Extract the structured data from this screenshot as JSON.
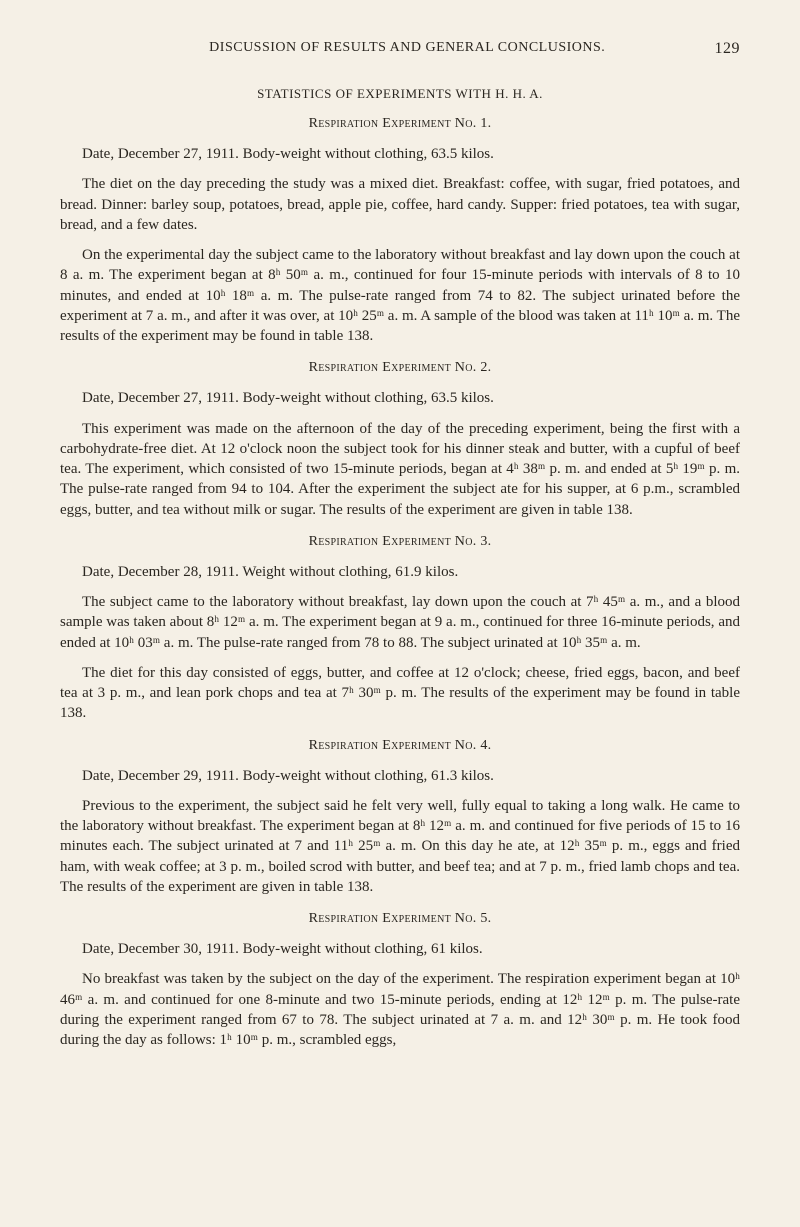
{
  "header": {
    "title": "DISCUSSION OF RESULTS AND GENERAL CONCLUSIONS.",
    "page_number": "129"
  },
  "section_title": "STATISTICS OF EXPERIMENTS WITH H. H. A.",
  "experiments": [
    {
      "title": "Respiration Experiment No. 1.",
      "paragraphs": [
        "Date, December 27, 1911. Body-weight without clothing, 63.5 kilos.",
        "The diet on the day preceding the study was a mixed diet. Breakfast: coffee, with sugar, fried potatoes, and bread. Dinner: barley soup, potatoes, bread, apple pie, coffee, hard candy. Supper: fried potatoes, tea with sugar, bread, and a few dates.",
        "On the experimental day the subject came to the laboratory without breakfast and lay down upon the couch at 8 a. m. The experiment began at 8ʰ 50ᵐ a. m., continued for four 15-minute periods with intervals of 8 to 10 minutes, and ended at 10ʰ 18ᵐ a. m. The pulse-rate ranged from 74 to 82. The subject urinated before the experiment at 7 a. m., and after it was over, at 10ʰ 25ᵐ a. m. A sample of the blood was taken at 11ʰ 10ᵐ a. m. The results of the experiment may be found in table 138."
      ]
    },
    {
      "title": "Respiration Experiment No. 2.",
      "paragraphs": [
        "Date, December 27, 1911. Body-weight without clothing, 63.5 kilos.",
        "This experiment was made on the afternoon of the day of the preceding experiment, being the first with a carbohydrate-free diet. At 12 o'clock noon the subject took for his dinner steak and butter, with a cupful of beef tea. The experiment, which consisted of two 15-minute periods, began at 4ʰ 38ᵐ p. m. and ended at 5ʰ 19ᵐ p. m. The pulse-rate ranged from 94 to 104. After the experiment the subject ate for his supper, at 6 p.m., scrambled eggs, butter, and tea without milk or sugar. The results of the experiment are given in table 138."
      ]
    },
    {
      "title": "Respiration Experiment No. 3.",
      "paragraphs": [
        "Date, December 28, 1911. Weight without clothing, 61.9 kilos.",
        "The subject came to the laboratory without breakfast, lay down upon the couch at 7ʰ 45ᵐ a. m., and a blood sample was taken about 8ʰ 12ᵐ a. m. The experiment began at 9 a. m., continued for three 16-minute periods, and ended at 10ʰ 03ᵐ a. m. The pulse-rate ranged from 78 to 88. The subject urinated at 10ʰ 35ᵐ a. m.",
        "The diet for this day consisted of eggs, butter, and coffee at 12 o'clock; cheese, fried eggs, bacon, and beef tea at 3 p. m., and lean pork chops and tea at 7ʰ 30ᵐ p. m. The results of the experiment may be found in table 138."
      ]
    },
    {
      "title": "Respiration Experiment No. 4.",
      "paragraphs": [
        "Date, December 29, 1911. Body-weight without clothing, 61.3 kilos.",
        "Previous to the experiment, the subject said he felt very well, fully equal to taking a long walk. He came to the laboratory without breakfast. The experiment began at 8ʰ 12ᵐ a. m. and continued for five periods of 15 to 16 minutes each. The subject urinated at 7 and 11ʰ 25ᵐ a. m. On this day he ate, at 12ʰ 35ᵐ p. m., eggs and fried ham, with weak coffee; at 3 p. m., boiled scrod with butter, and beef tea; and at 7 p. m., fried lamb chops and tea. The results of the experiment are given in table 138."
      ]
    },
    {
      "title": "Respiration Experiment No. 5.",
      "paragraphs": [
        "Date, December 30, 1911. Body-weight without clothing, 61 kilos.",
        "No breakfast was taken by the subject on the day of the experiment. The respiration experiment began at 10ʰ 46ᵐ a. m. and continued for one 8-minute and two 15-minute periods, ending at 12ʰ 12ᵐ p. m. The pulse-rate during the experiment ranged from 67 to 78. The subject urinated at 7 a. m. and 12ʰ 30ᵐ p. m. He took food during the day as follows: 1ʰ 10ᵐ p. m., scrambled eggs,"
      ]
    }
  ]
}
